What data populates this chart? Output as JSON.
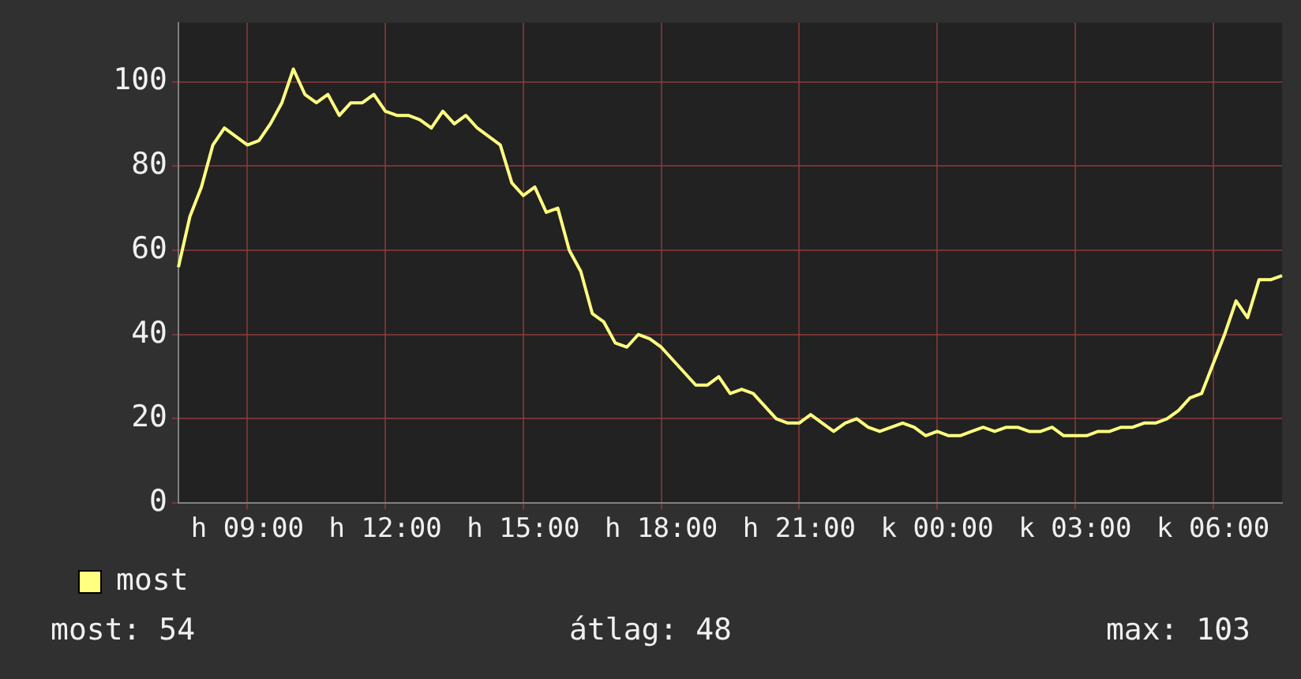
{
  "chart_data": {
    "type": "line",
    "categories": [
      null,
      null,
      null,
      null,
      null,
      null,
      "h 09:00",
      null,
      null,
      null,
      null,
      null,
      null,
      null,
      null,
      null,
      null,
      null,
      "h 12:00",
      null,
      null,
      null,
      null,
      null,
      null,
      null,
      null,
      null,
      null,
      null,
      "h 15:00",
      null,
      null,
      null,
      null,
      null,
      null,
      null,
      null,
      null,
      null,
      null,
      "h 18:00",
      null,
      null,
      null,
      null,
      null,
      null,
      null,
      null,
      null,
      null,
      null,
      "h 21:00",
      null,
      null,
      null,
      null,
      null,
      null,
      null,
      null,
      null,
      null,
      null,
      "k 00:00",
      null,
      null,
      null,
      null,
      null,
      null,
      null,
      null,
      null,
      null,
      null,
      "k 03:00",
      null,
      null,
      null,
      null,
      null,
      null,
      null,
      null,
      null,
      null,
      null,
      "k 06:00",
      null,
      null,
      null,
      null,
      null,
      null
    ],
    "series": [
      {
        "name": "most",
        "color": "#ffff80",
        "values": [
          56,
          68,
          75,
          85,
          89,
          87,
          85,
          86,
          90,
          95,
          103,
          97,
          95,
          97,
          92,
          95,
          95,
          97,
          93,
          92,
          92,
          91,
          89,
          93,
          90,
          92,
          89,
          87,
          85,
          76,
          73,
          75,
          69,
          70,
          60,
          55,
          45,
          43,
          38,
          37,
          40,
          39,
          37,
          34,
          31,
          28,
          28,
          30,
          26,
          27,
          26,
          23,
          20,
          19,
          19,
          21,
          19,
          17,
          19,
          20,
          18,
          17,
          18,
          19,
          18,
          16,
          17,
          16,
          16,
          17,
          18,
          17,
          18,
          18,
          17,
          17,
          18,
          16,
          16,
          16,
          17,
          17,
          18,
          18,
          19,
          19,
          20,
          22,
          25,
          26,
          33,
          40,
          48,
          44,
          53,
          53,
          54
        ]
      }
    ],
    "ylim": [
      0,
      114
    ],
    "yticks": [
      0,
      20,
      40,
      60,
      80,
      100
    ],
    "grid": true,
    "legend": "bottom left",
    "annotations": [
      "most: 54",
      "átlag: 48",
      "max: 103"
    ]
  }
}
